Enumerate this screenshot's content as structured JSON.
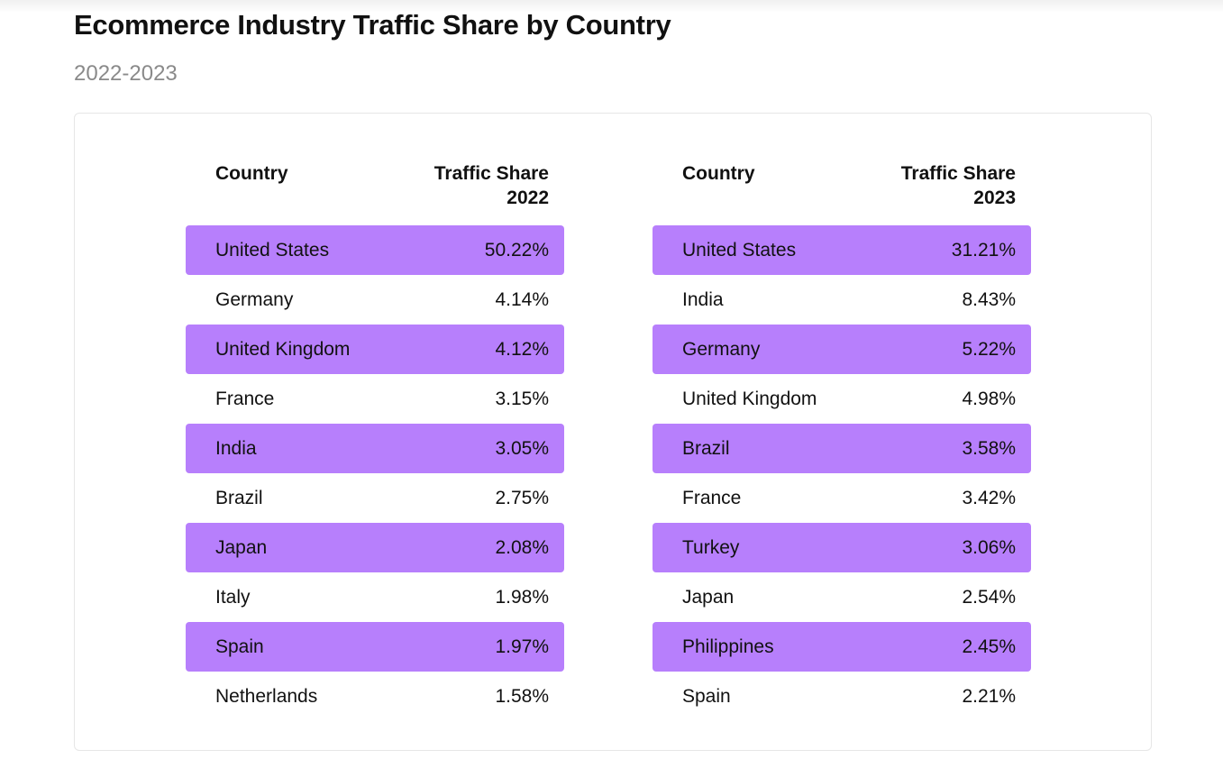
{
  "header": {
    "title": "Ecommerce Industry Traffic Share by Country",
    "subtitle": "2022-2023"
  },
  "colors": {
    "highlight_row": "#b77ffc",
    "title": "#111111",
    "subtitle": "#8a8a8a",
    "card_border": "#e6e6e6"
  },
  "chart_data": [
    {
      "type": "table",
      "columns": [
        "Country",
        "Traffic Share 2022"
      ],
      "header_country": "Country",
      "header_share_line1": "Traffic Share",
      "header_share_line2": "2022",
      "rows": [
        {
          "country": "United States",
          "share": "50.22%"
        },
        {
          "country": "Germany",
          "share": "4.14%"
        },
        {
          "country": "United Kingdom",
          "share": "4.12%"
        },
        {
          "country": "France",
          "share": "3.15%"
        },
        {
          "country": "India",
          "share": "3.05%"
        },
        {
          "country": "Brazil",
          "share": "2.75%"
        },
        {
          "country": "Japan",
          "share": "2.08%"
        },
        {
          "country": "Italy",
          "share": "1.98%"
        },
        {
          "country": "Spain",
          "share": "1.97%"
        },
        {
          "country": "Netherlands",
          "share": "1.58%"
        }
      ],
      "values": [
        50.22,
        4.14,
        4.12,
        3.15,
        3.05,
        2.75,
        2.08,
        1.98,
        1.97,
        1.58
      ]
    },
    {
      "type": "table",
      "columns": [
        "Country",
        "Traffic Share 2023"
      ],
      "header_country": "Country",
      "header_share_line1": "Traffic Share",
      "header_share_line2": "2023",
      "rows": [
        {
          "country": "United States",
          "share": "31.21%"
        },
        {
          "country": "India",
          "share": "8.43%"
        },
        {
          "country": "Germany",
          "share": "5.22%"
        },
        {
          "country": "United Kingdom",
          "share": "4.98%"
        },
        {
          "country": "Brazil",
          "share": "3.58%"
        },
        {
          "country": "France",
          "share": "3.42%"
        },
        {
          "country": "Turkey",
          "share": "3.06%"
        },
        {
          "country": "Japan",
          "share": "2.54%"
        },
        {
          "country": "Philippines",
          "share": "2.45%"
        },
        {
          "country": "Spain",
          "share": "2.21%"
        }
      ],
      "values": [
        31.21,
        8.43,
        5.22,
        4.98,
        3.58,
        3.42,
        3.06,
        2.54,
        2.45,
        2.21
      ]
    }
  ]
}
